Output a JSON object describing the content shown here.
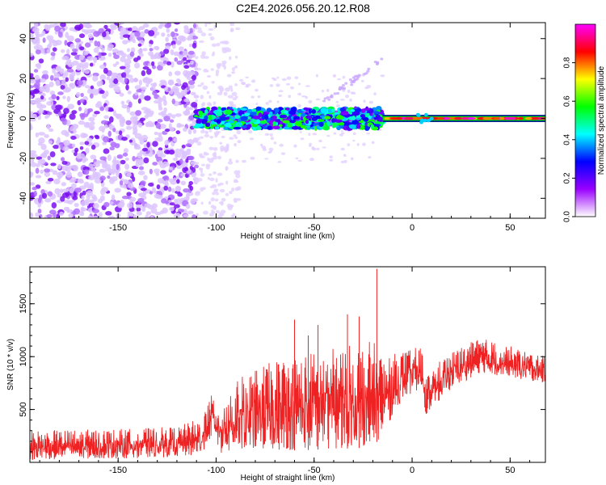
{
  "title": "C2E4.2026.056.20.12.R08",
  "chart_data": [
    {
      "type": "heatmap",
      "xlabel": "Height of straight line (km)",
      "ylabel": "Frequency (Hz)",
      "x_ticks": [
        "-150",
        "-100",
        "-50",
        "0",
        "50"
      ],
      "y_ticks": [
        "-40",
        "-20",
        "0",
        "20",
        "40"
      ],
      "xlim": [
        -195,
        68
      ],
      "ylim": [
        -50,
        48
      ],
      "colorbar": {
        "label": "Normalized spectral amplitude",
        "ticks": [
          "0.0",
          "0.2",
          "0.4",
          "0.6",
          "0.8"
        ],
        "range": [
          0,
          1
        ],
        "colors": [
          "#ffffff",
          "#9a00ff",
          "#0000ff",
          "#00ffff",
          "#00ff00",
          "#ffff00",
          "#ff0000",
          "#ff00ff"
        ]
      },
      "regions": [
        {
          "x_from": -195,
          "x_to": -110,
          "description": "dense scattered noise across all frequencies"
        },
        {
          "x_from": -110,
          "x_to": -88,
          "description": "sparse faint noise"
        },
        {
          "x_from": -110,
          "x_to": -15,
          "description": "carrier band near 0 Hz, amplitude 0.3-0.6, width about 8 Hz"
        },
        {
          "x_from": -15,
          "x_to": 68,
          "description": "narrow strong carrier line at 0 Hz, amplitude 0.8-1.0"
        }
      ]
    },
    {
      "type": "line",
      "xlabel": "Height of straight line (km)",
      "ylabel": "SNR (10 * v/v)",
      "x_ticks": [
        "-150",
        "-100",
        "-50",
        "0",
        "50"
      ],
      "y_ticks": [
        "500",
        "1000",
        "1500"
      ],
      "xlim": [
        -195,
        68
      ],
      "ylim": [
        0,
        1850
      ],
      "color": "#ee2222",
      "series": [
        {
          "envelope": [
            {
              "x": -195,
              "low": 20,
              "high": 300
            },
            {
              "x": -170,
              "low": 30,
              "high": 310
            },
            {
              "x": -140,
              "low": 40,
              "high": 320
            },
            {
              "x": -120,
              "low": 50,
              "high": 340
            },
            {
              "x": -108,
              "low": 60,
              "high": 420
            },
            {
              "x": -102,
              "low": 250,
              "high": 650
            },
            {
              "x": -98,
              "low": 80,
              "high": 600
            },
            {
              "x": -85,
              "low": 100,
              "high": 850
            },
            {
              "x": -65,
              "low": 110,
              "high": 1000
            },
            {
              "x": -50,
              "low": 120,
              "high": 1050
            },
            {
              "x": -35,
              "low": 130,
              "high": 1100
            },
            {
              "x": -20,
              "low": 140,
              "high": 1150
            },
            {
              "x": -14,
              "low": 300,
              "high": 1000
            },
            {
              "x": -5,
              "low": 600,
              "high": 1050
            },
            {
              "x": 5,
              "low": 700,
              "high": 1100
            },
            {
              "x": 7,
              "low": 450,
              "high": 800
            },
            {
              "x": 10,
              "low": 500,
              "high": 900
            },
            {
              "x": 20,
              "low": 700,
              "high": 1050
            },
            {
              "x": 35,
              "low": 850,
              "high": 1180
            },
            {
              "x": 50,
              "low": 800,
              "high": 1100
            },
            {
              "x": 68,
              "low": 750,
              "high": 1000
            }
          ],
          "spikes": [
            {
              "x": -60,
              "y": 1350
            },
            {
              "x": -53,
              "y": 1200
            },
            {
              "x": -48,
              "y": 1300
            },
            {
              "x": -33,
              "y": 1400
            },
            {
              "x": -27,
              "y": 1380
            },
            {
              "x": -18,
              "y": 1830
            }
          ]
        }
      ]
    }
  ]
}
